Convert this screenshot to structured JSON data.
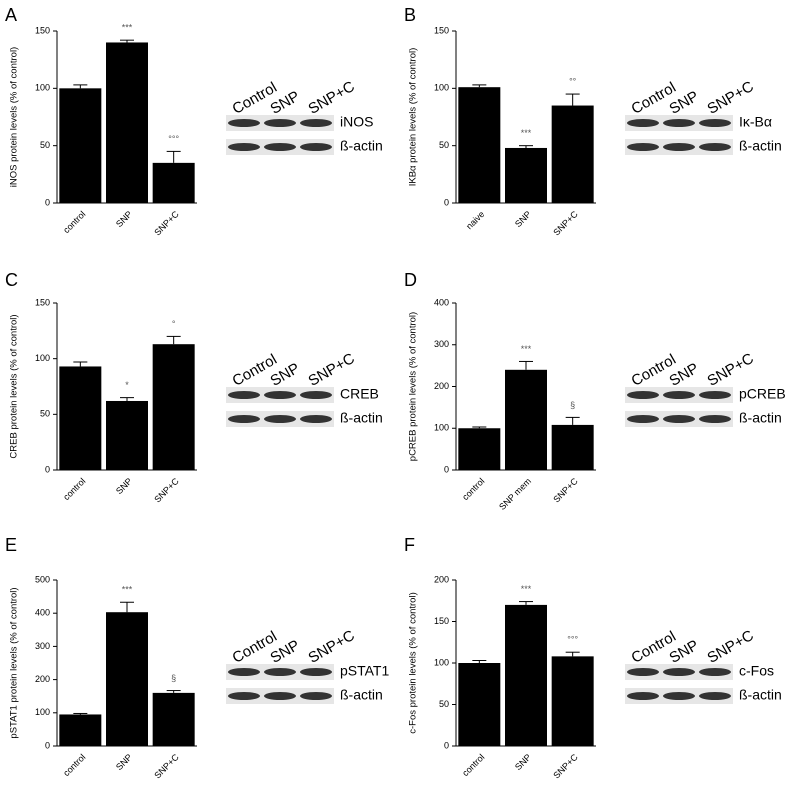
{
  "chart_data": [
    {
      "type": "bar",
      "panel": "A",
      "ylabel": "iNOS protein levels (% of control)",
      "categories": [
        "control",
        "SNP",
        "SNP+C"
      ],
      "values": [
        100,
        140,
        35
      ],
      "errors": [
        3,
        2,
        10
      ],
      "annotations": [
        null,
        "***",
        "°°°"
      ],
      "ylim": [
        0,
        150
      ],
      "yticks": [
        0,
        50,
        100,
        150
      ],
      "color": "#000000",
      "blot_lanes": [
        "Control",
        "SNP",
        "SNP+C"
      ],
      "blot_bands": [
        "iNOS",
        "ß-actin"
      ]
    },
    {
      "type": "bar",
      "panel": "B",
      "ylabel": "IKBα protein levels (% of control)",
      "categories": [
        "naive",
        "SNP",
        "SNP+C"
      ],
      "values": [
        101,
        48,
        85
      ],
      "errors": [
        2,
        2,
        10
      ],
      "annotations": [
        null,
        "***",
        "°°"
      ],
      "ylim": [
        0,
        150
      ],
      "yticks": [
        0,
        50,
        100,
        150
      ],
      "color": "#000000",
      "blot_lanes": [
        "Control",
        "SNP",
        "SNP+C"
      ],
      "blot_bands": [
        "Iκ-Bα",
        "ß-actin"
      ]
    },
    {
      "type": "bar",
      "panel": "C",
      "ylabel": "CREB protein levels (% of control)",
      "categories": [
        "control",
        "SNP",
        "SNP+C"
      ],
      "values": [
        93,
        62,
        113
      ],
      "errors": [
        4,
        3,
        7
      ],
      "annotations": [
        null,
        "*",
        "°"
      ],
      "ylim": [
        0,
        150
      ],
      "yticks": [
        0,
        50,
        100,
        150
      ],
      "color": "#000000",
      "blot_lanes": [
        "Control",
        "SNP",
        "SNP+C"
      ],
      "blot_bands": [
        "CREB",
        "ß-actin"
      ]
    },
    {
      "type": "bar",
      "panel": "D",
      "ylabel": "pCREB protein levels (% of control)",
      "categories": [
        "control",
        "SNP mem",
        "SNP+C"
      ],
      "values": [
        100,
        240,
        108
      ],
      "errors": [
        3,
        20,
        18
      ],
      "annotations": [
        null,
        "***",
        "§"
      ],
      "ylim": [
        0,
        400
      ],
      "yticks": [
        0,
        100,
        200,
        300,
        400
      ],
      "color": "#000000",
      "blot_lanes": [
        "Control",
        "SNP",
        "SNP+C"
      ],
      "blot_bands": [
        "pCREB",
        "ß-actin"
      ]
    },
    {
      "type": "bar",
      "panel": "E",
      "ylabel": "pSTAT1 protein levels (% of control)",
      "categories": [
        "control",
        "SNP",
        "SNP+C"
      ],
      "values": [
        95,
        403,
        160
      ],
      "errors": [
        3,
        30,
        7
      ],
      "annotations": [
        null,
        "***",
        "§"
      ],
      "ylim": [
        0,
        500
      ],
      "yticks": [
        0,
        100,
        200,
        300,
        400,
        500
      ],
      "color": "#000000",
      "blot_lanes": [
        "Control",
        "SNP",
        "SNP+C"
      ],
      "blot_bands": [
        "pSTAT1",
        "ß-actin"
      ]
    },
    {
      "type": "bar",
      "panel": "F",
      "ylabel": "c-Fos protein levels (% of control)",
      "categories": [
        "control",
        "SNP",
        "SNP+C"
      ],
      "values": [
        100,
        170,
        108
      ],
      "errors": [
        3,
        4,
        5
      ],
      "annotations": [
        null,
        "***",
        "°°°"
      ],
      "ylim": [
        0,
        200
      ],
      "yticks": [
        0,
        50,
        100,
        150,
        200
      ],
      "color": "#000000",
      "blot_lanes": [
        "Control",
        "SNP",
        "SNP+C"
      ],
      "blot_bands": [
        "c-Fos",
        "ß-actin"
      ]
    }
  ]
}
